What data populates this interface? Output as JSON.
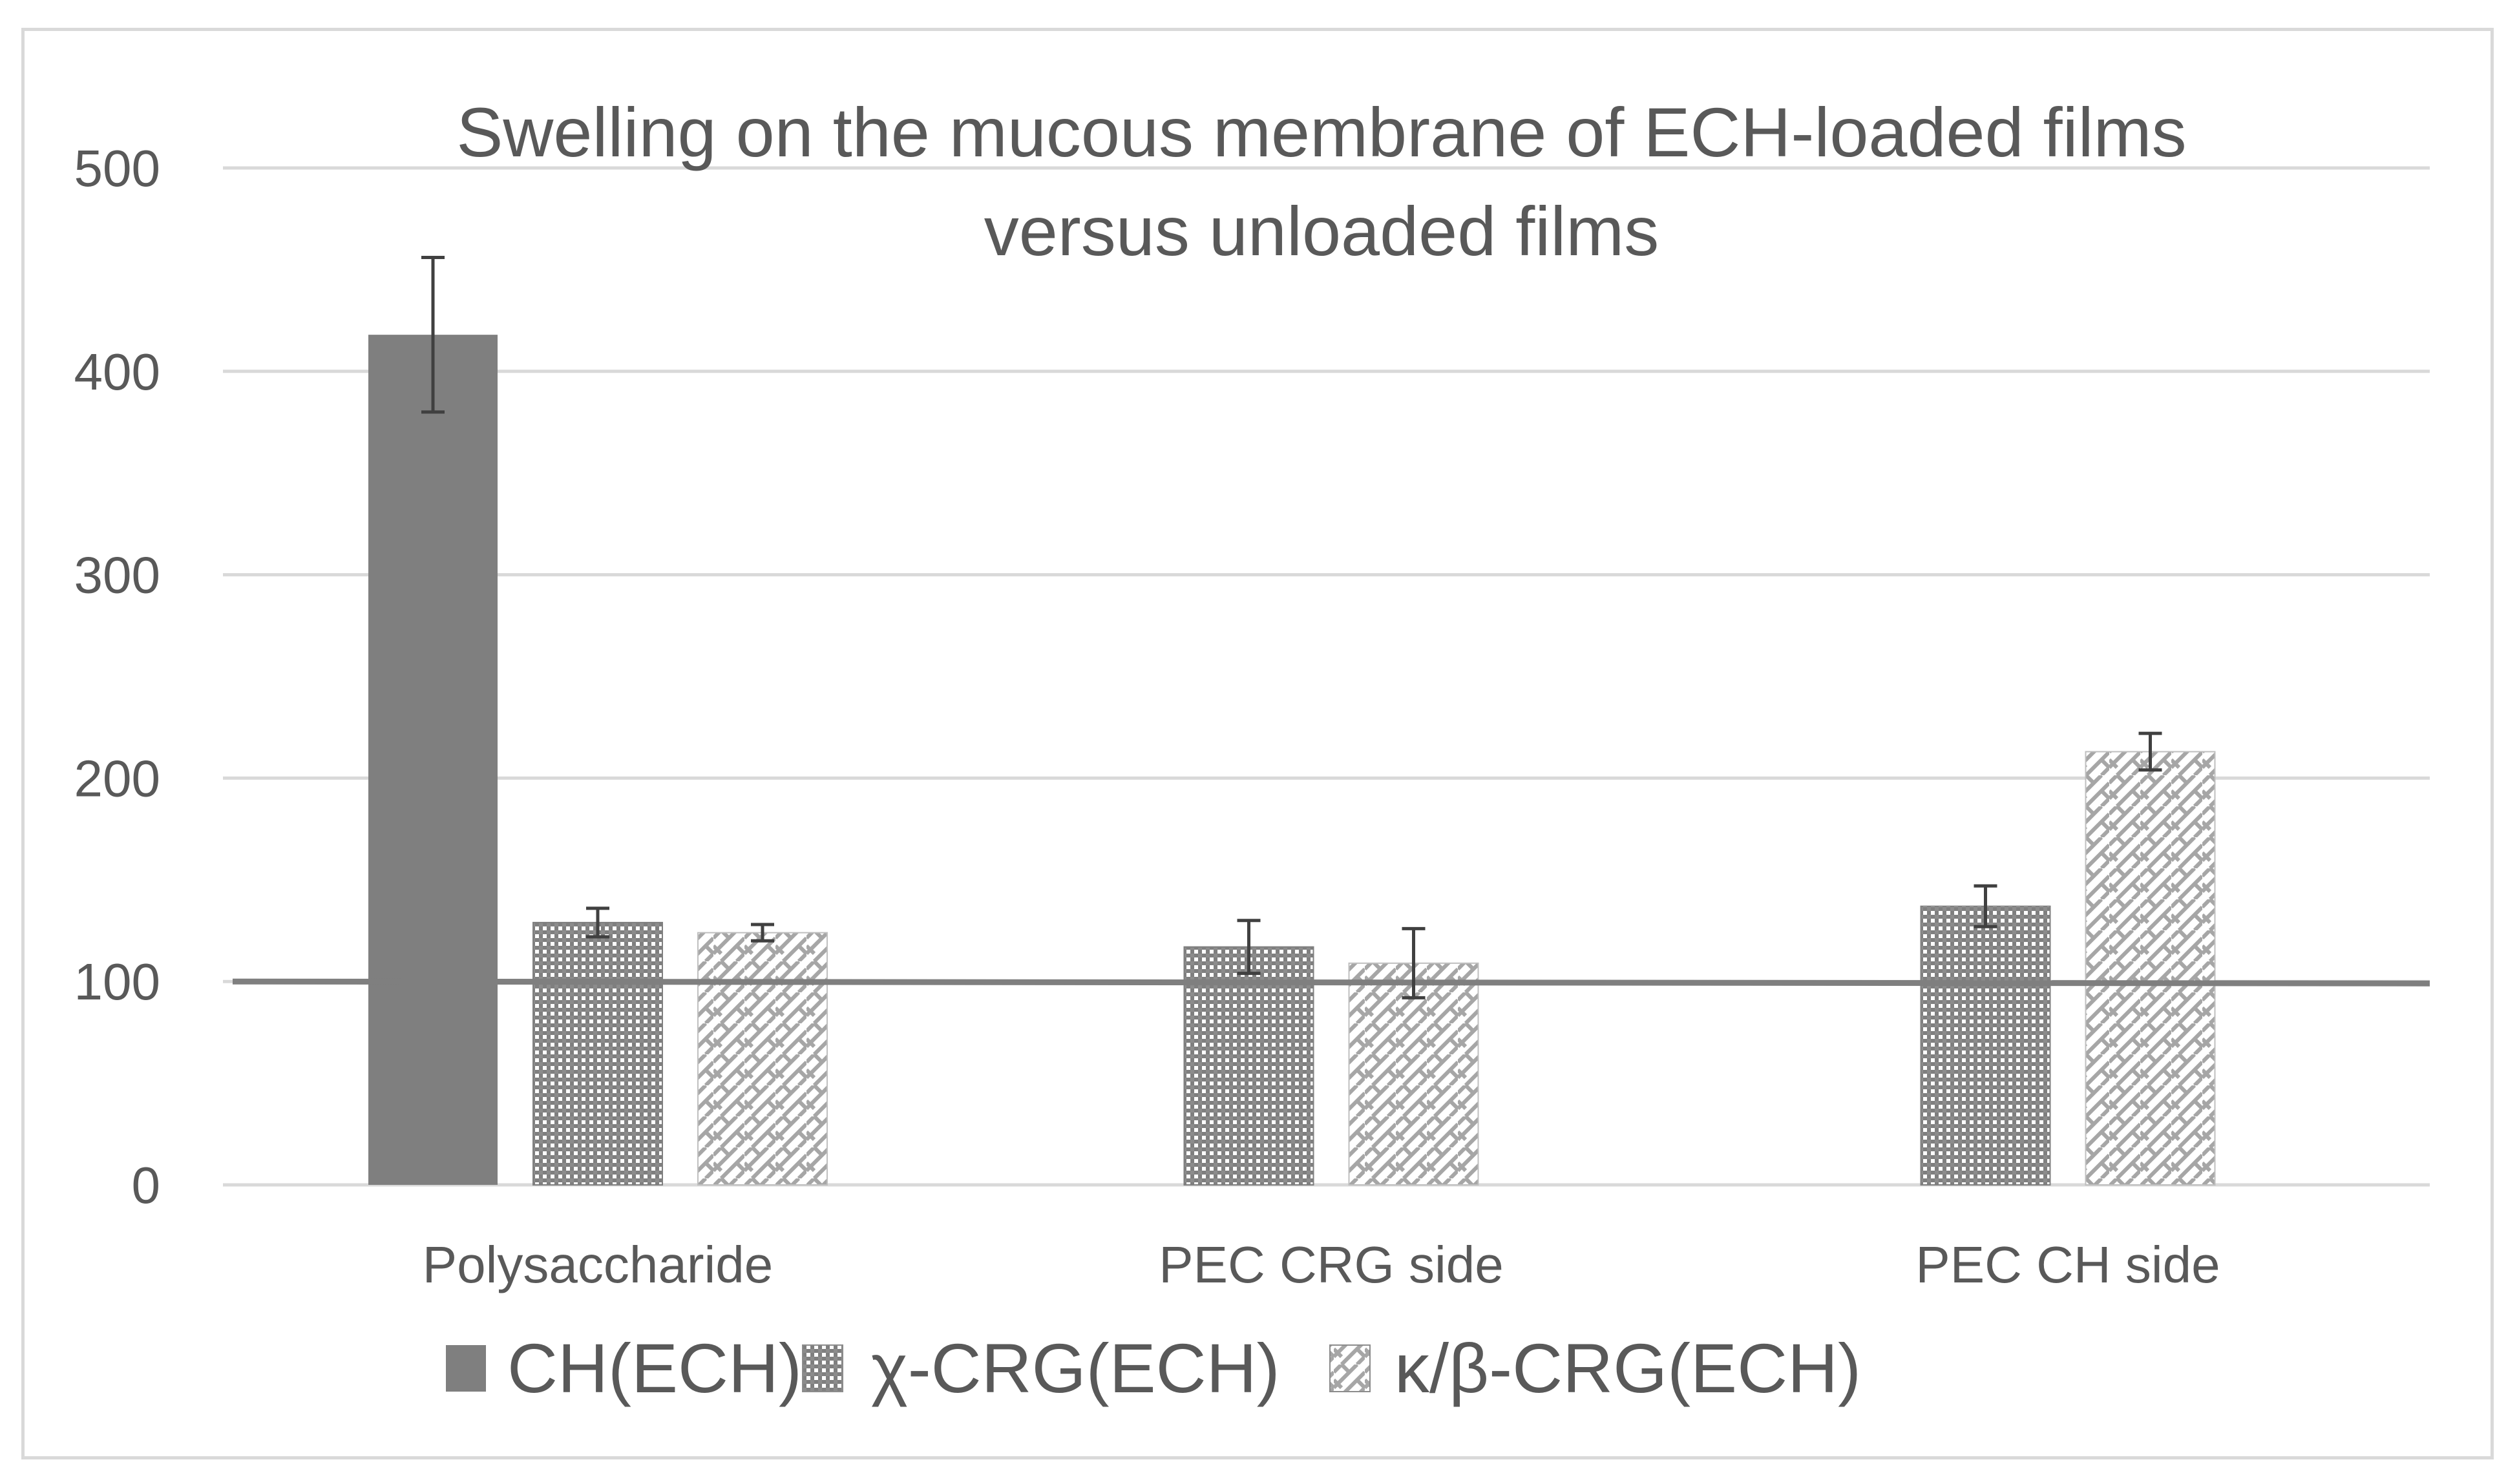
{
  "chart_data": {
    "type": "bar",
    "title_lines": [
      "Swelling on the mucous membrane of ECH-loaded films",
      "versus unloaded films"
    ],
    "xlabel": "",
    "ylabel": "",
    "ylim": [
      0,
      500
    ],
    "yticks": [
      0,
      100,
      200,
      300,
      400,
      500
    ],
    "grid": true,
    "legend_position": "bottom",
    "categories": [
      "Polysaccharide",
      "PEC CRG side",
      "PEC CH side"
    ],
    "series": [
      {
        "name": "CH(ECH)",
        "values": [
          418,
          null,
          null
        ],
        "errors": [
          38,
          null,
          null
        ],
        "color": "#7f7f7f",
        "pattern": "solid"
      },
      {
        "name": "χ-CRG(ECH)",
        "values": [
          129,
          117,
          137
        ],
        "errors": [
          7,
          13,
          10
        ],
        "color": "#7f7f7f",
        "pattern": "dense-dots"
      },
      {
        "name": "κ/β-CRG(ECH)",
        "values": [
          124,
          109,
          213
        ],
        "errors": [
          4,
          17,
          9
        ],
        "color": "#a6a6a6",
        "pattern": "weave"
      }
    ],
    "reference_line": {
      "value": 100
    },
    "colors": {
      "gridline": "#d9d9d9",
      "axis_text": "#595959",
      "reference": "#7f7f7f",
      "error_bar": "#404040"
    }
  }
}
